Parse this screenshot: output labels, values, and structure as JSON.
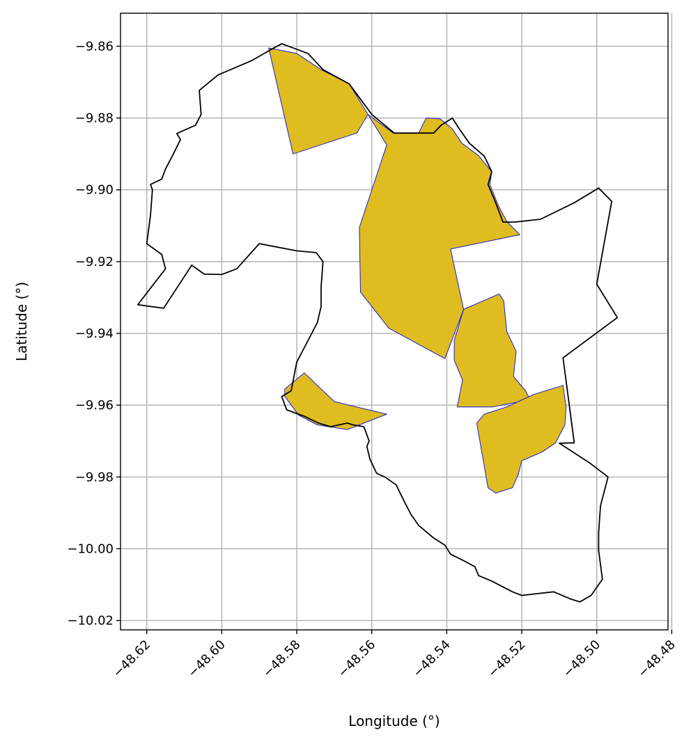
{
  "chart_data": {
    "type": "map",
    "xlabel": "Longitude (°)",
    "ylabel": "Latitude (°)",
    "xlim": [
      -48.627,
      -48.481
    ],
    "ylim": [
      -10.0226,
      -9.8508
    ],
    "x_ticks": [
      -48.62,
      -48.6,
      -48.58,
      -48.56,
      -48.54,
      -48.52,
      -48.5,
      -48.48
    ],
    "x_tick_labels": [
      "−48.62",
      "−48.60",
      "−48.58",
      "−48.56",
      "−48.54",
      "−48.52",
      "−48.50",
      "−48.48"
    ],
    "y_ticks": [
      -9.86,
      -9.88,
      -9.9,
      -9.92,
      -9.94,
      -9.96,
      -9.98,
      -10.0,
      -10.02
    ],
    "y_tick_labels": [
      "−9.86",
      "−9.88",
      "−9.90",
      "−9.92",
      "−9.94",
      "−9.96",
      "−9.98",
      "−10.00",
      "−10.02"
    ],
    "grid": true,
    "colors": {
      "fill": "#dfbd20",
      "fill_edge": "#1a1ad0",
      "boundary": "#000000",
      "grid": "#b0b0b0"
    },
    "boundary": [
      [
        -48.584,
        -9.8593
      ],
      [
        -48.577,
        -9.862
      ],
      [
        -48.573,
        -9.8665
      ],
      [
        -48.566,
        -9.8705
      ],
      [
        -48.56,
        -9.879
      ],
      [
        -48.554,
        -9.8842
      ],
      [
        -48.5435,
        -9.8842
      ],
      [
        -48.5415,
        -9.882
      ],
      [
        -48.5385,
        -9.88
      ],
      [
        -48.5368,
        -9.8828
      ],
      [
        -48.534,
        -9.887
      ],
      [
        -48.53,
        -9.8906
      ],
      [
        -48.528,
        -9.895
      ],
      [
        -48.529,
        -9.8985
      ],
      [
        -48.527,
        -9.9035
      ],
      [
        -48.525,
        -9.909
      ],
      [
        -48.522,
        -9.909
      ],
      [
        -48.515,
        -9.9082
      ],
      [
        -48.506,
        -9.9036
      ],
      [
        -48.4995,
        -9.8995
      ],
      [
        -48.496,
        -9.9032
      ],
      [
        -48.5,
        -9.9263
      ],
      [
        -48.4945,
        -9.9356
      ],
      [
        -48.509,
        -9.9468
      ],
      [
        -48.506,
        -9.9705
      ],
      [
        -48.51,
        -9.9706
      ],
      [
        -48.502,
        -9.976
      ],
      [
        -48.497,
        -9.98
      ],
      [
        -48.499,
        -9.988
      ],
      [
        -48.4995,
        -9.9955
      ],
      [
        -48.4995,
        -10.0005
      ],
      [
        -48.4985,
        -10.0085
      ],
      [
        -48.5015,
        -10.013
      ],
      [
        -48.5045,
        -10.0148
      ],
      [
        -48.507,
        -10.014
      ],
      [
        -48.5115,
        -10.012
      ],
      [
        -48.52,
        -10.013
      ],
      [
        -48.5225,
        -10.012
      ],
      [
        -48.528,
        -10.009
      ],
      [
        -48.5315,
        -10.0075
      ],
      [
        -48.5325,
        -10.005
      ],
      [
        -48.535,
        -10.0036
      ],
      [
        -48.539,
        -10.0015
      ],
      [
        -48.5405,
        -9.999
      ],
      [
        -48.5435,
        -9.997
      ],
      [
        -48.5475,
        -9.9935
      ],
      [
        -48.5495,
        -9.9905
      ],
      [
        -48.5515,
        -9.9865
      ],
      [
        -48.5535,
        -9.9822
      ],
      [
        -48.5565,
        -9.98
      ],
      [
        -48.5587,
        -9.979
      ],
      [
        -48.5605,
        -9.975
      ],
      [
        -48.5613,
        -9.9715
      ],
      [
        -48.5607,
        -9.97
      ],
      [
        -48.5621,
        -9.966
      ],
      [
        -48.565,
        -9.9655
      ],
      [
        -48.5665,
        -9.965
      ],
      [
        -48.571,
        -9.966
      ],
      [
        -48.5742,
        -9.965
      ],
      [
        -48.578,
        -9.9631
      ],
      [
        -48.5827,
        -9.9613
      ],
      [
        -48.584,
        -9.9576
      ],
      [
        -48.5815,
        -9.956
      ],
      [
        -48.58,
        -9.948
      ],
      [
        -48.5745,
        -9.937
      ],
      [
        -48.5735,
        -9.9325
      ],
      [
        -48.5735,
        -9.927
      ],
      [
        -48.573,
        -9.92
      ],
      [
        -48.5748,
        -9.9175
      ],
      [
        -48.58,
        -9.917
      ],
      [
        -48.59,
        -9.915
      ],
      [
        -48.596,
        -9.922
      ],
      [
        -48.6,
        -9.9236
      ],
      [
        -48.6047,
        -9.9235
      ],
      [
        -48.608,
        -9.921
      ],
      [
        -48.6155,
        -9.933
      ],
      [
        -48.6224,
        -9.932
      ],
      [
        -48.615,
        -9.922
      ],
      [
        -48.616,
        -9.918
      ],
      [
        -48.62,
        -9.915
      ],
      [
        -48.619,
        -9.907
      ],
      [
        -48.6185,
        -9.9
      ],
      [
        -48.619,
        -9.8985
      ],
      [
        -48.616,
        -9.897
      ],
      [
        -48.615,
        -9.8942
      ],
      [
        -48.613,
        -9.8902
      ],
      [
        -48.611,
        -9.886
      ],
      [
        -48.612,
        -9.8843
      ],
      [
        -48.607,
        -9.882
      ],
      [
        -48.6055,
        -9.879
      ],
      [
        -48.606,
        -9.8723
      ],
      [
        -48.601,
        -9.868
      ],
      [
        -48.592,
        -9.864
      ],
      [
        -48.587,
        -9.861
      ],
      [
        -48.584,
        -9.8593
      ]
    ],
    "parcels": [
      [
        [
          -48.5875,
          -9.8605
        ],
        [
          -48.58,
          -9.862
        ],
        [
          -48.5735,
          -9.8665
        ],
        [
          -48.566,
          -9.8705
        ],
        [
          -48.561,
          -9.879
        ],
        [
          -48.564,
          -9.8842
        ],
        [
          -48.581,
          -9.89
        ]
      ],
      [
        [
          -48.561,
          -9.879
        ],
        [
          -48.5543,
          -9.8842
        ],
        [
          -48.5475,
          -9.8842
        ],
        [
          -48.5455,
          -9.88
        ],
        [
          -48.5418,
          -9.8802
        ],
        [
          -48.5385,
          -9.883
        ],
        [
          -48.536,
          -9.887
        ],
        [
          -48.5315,
          -9.8905
        ],
        [
          -48.528,
          -9.895
        ],
        [
          -48.5285,
          -9.8985
        ],
        [
          -48.5262,
          -9.9045
        ],
        [
          -48.524,
          -9.9088
        ],
        [
          -48.5205,
          -9.9125
        ],
        [
          -48.539,
          -9.9165
        ],
        [
          -48.5355,
          -9.9333
        ],
        [
          -48.5405,
          -9.947
        ],
        [
          -48.545,
          -9.9445
        ],
        [
          -48.5555,
          -9.9385
        ],
        [
          -48.563,
          -9.9285
        ],
        [
          -48.5633,
          -9.9105
        ],
        [
          -48.556,
          -9.8875
        ]
      ],
      [
        [
          -48.5355,
          -9.9333
        ],
        [
          -48.526,
          -9.929
        ],
        [
          -48.5248,
          -9.931
        ],
        [
          -48.524,
          -9.9395
        ],
        [
          -48.5215,
          -9.945
        ],
        [
          -48.5222,
          -9.952
        ],
        [
          -48.519,
          -9.956
        ],
        [
          -48.5178,
          -9.9585
        ],
        [
          -48.528,
          -9.9605
        ],
        [
          -48.5372,
          -9.9605
        ],
        [
          -48.5358,
          -9.953
        ],
        [
          -48.538,
          -9.9475
        ],
        [
          -48.538,
          -9.942
        ]
      ],
      [
        [
          -48.5168,
          -9.957
        ],
        [
          -48.509,
          -9.9545
        ],
        [
          -48.5082,
          -9.9605
        ],
        [
          -48.5085,
          -9.9655
        ],
        [
          -48.511,
          -9.9705
        ],
        [
          -48.5145,
          -9.973
        ],
        [
          -48.52,
          -9.9755
        ],
        [
          -48.521,
          -9.9795
        ],
        [
          -48.5225,
          -9.983
        ],
        [
          -48.527,
          -9.9845
        ],
        [
          -48.529,
          -9.983
        ],
        [
          -48.532,
          -9.965
        ],
        [
          -48.53,
          -9.9625
        ],
        [
          -48.524,
          -9.9605
        ]
      ],
      [
        [
          -48.5832,
          -9.9555
        ],
        [
          -48.578,
          -9.951
        ],
        [
          -48.57,
          -9.959
        ],
        [
          -48.556,
          -9.9625
        ],
        [
          -48.5665,
          -9.9668
        ],
        [
          -48.5745,
          -9.9655
        ],
        [
          -48.5795,
          -9.9628
        ],
        [
          -48.5832,
          -9.9575
        ]
      ]
    ]
  }
}
